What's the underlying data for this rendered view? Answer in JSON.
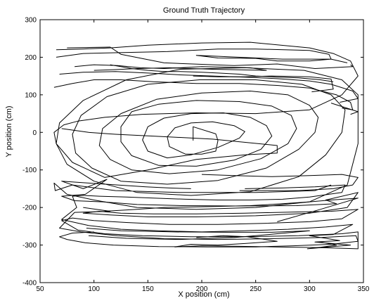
{
  "chart_data": {
    "type": "line",
    "title": "Ground Truth Trajectory",
    "xlabel": "X position (cm)",
    "ylabel": "Y position (cm)",
    "xlim": [
      50,
      350
    ],
    "ylim": [
      -400,
      300
    ],
    "xticks": [
      50,
      100,
      150,
      200,
      250,
      300,
      350
    ],
    "yticks": [
      -400,
      -300,
      -200,
      -100,
      0,
      100,
      200,
      300
    ],
    "grid": false,
    "line_color": "#000000",
    "series": [
      {
        "x": [
          192,
          192,
          213,
          215,
          213,
          200,
          185,
          170,
          168,
          175,
          190,
          210,
          230,
          240,
          235,
          215,
          190,
          168,
          150,
          145,
          150,
          165,
          190,
          220,
          245,
          260,
          265,
          255,
          230,
          195,
          160,
          135,
          125,
          125,
          135,
          160,
          195,
          235,
          265,
          283,
          288,
          280,
          255,
          215,
          170,
          135,
          115,
          105,
          108,
          125,
          158,
          200,
          245,
          280,
          300,
          308,
          305,
          290,
          260,
          215,
          168,
          125,
          98,
          83,
          80,
          88,
          112,
          150,
          198,
          250,
          293,
          320,
          333,
          330,
          315,
          290,
          245,
          190,
          140,
          100,
          75,
          65,
          68,
          90,
          130,
          180,
          240,
          295,
          330,
          345,
          345,
          335,
          300,
          250,
          195,
          140,
          100,
          75,
          63,
          64,
          80,
          120,
          180,
          250,
          305,
          320
        ],
        "y": [
          -22,
          15,
          -4,
          -22,
          -50,
          -58,
          -58,
          -38,
          -12,
          12,
          25,
          28,
          18,
          2,
          -15,
          -40,
          -60,
          -68,
          -50,
          -20,
          15,
          38,
          50,
          52,
          40,
          18,
          -10,
          -45,
          -74,
          -90,
          -88,
          -62,
          -25,
          15,
          55,
          75,
          85,
          82,
          70,
          45,
          10,
          -30,
          -70,
          -100,
          -110,
          -100,
          -72,
          -35,
          10,
          50,
          88,
          105,
          110,
          100,
          72,
          40,
          0,
          -45,
          -95,
          -128,
          -138,
          -130,
          -95,
          -55,
          -5,
          45,
          95,
          128,
          140,
          140,
          128,
          100,
          60,
          0,
          -60,
          -118,
          -158,
          -168,
          -160,
          -130,
          -85,
          -30,
          25,
          85,
          140,
          168,
          172,
          165,
          140,
          100,
          -30,
          -140,
          -185,
          -200,
          -205,
          -200,
          -180,
          -165,
          -135,
          -155,
          -140,
          -155,
          -160,
          -160,
          -155,
          -140
        ]
      },
      {
        "x": [
          190,
          170,
          148,
          122,
          95,
          70,
          90,
          112,
          92,
          70,
          82,
          108,
          140,
          182,
          232,
          288,
          325,
          315,
          345,
          335,
          300,
          250,
          195,
          150,
          115,
          90,
          105,
          125,
          155,
          195,
          240,
          285,
          320,
          345,
          330,
          300,
          260,
          215,
          170,
          130,
          100,
          80,
          70,
          85,
          110,
          145,
          190,
          240,
          290,
          330,
          345,
          345,
          310,
          268,
          230,
          200,
          175,
          190,
          215,
          240,
          270,
          242,
          220,
          195
        ],
        "y": [
          -150,
          -148,
          -145,
          -140,
          -135,
          -130,
          -150,
          -125,
          -165,
          -170,
          -182,
          -185,
          -192,
          -195,
          -196,
          -195,
          -190,
          -180,
          -160,
          -200,
          -215,
          -222,
          -225,
          -225,
          -220,
          -215,
          -210,
          -215,
          -217,
          -217,
          -215,
          -212,
          -210,
          -205,
          -230,
          -238,
          -242,
          -245,
          -245,
          -240,
          -235,
          -228,
          -235,
          -260,
          -270,
          -275,
          -278,
          -278,
          -275,
          -270,
          -265,
          -310,
          -307,
          -305,
          -303,
          -302,
          -305,
          -298,
          -300,
          -296,
          -290,
          -278,
          -275,
          -280
        ]
      },
      {
        "x": [
          240,
          275,
          305,
          333,
          330,
          300,
          275,
          245,
          215,
          185,
          155,
          130,
          105,
          90,
          80,
          84,
          70,
          95,
          125,
          160,
          200,
          240,
          280,
          315,
          340,
          322,
          300,
          328,
          305,
          338,
          318,
          298,
          310,
          325,
          310
        ],
        "y": [
          -150,
          -148,
          -145,
          -140,
          -160,
          -172,
          -178,
          -180,
          -180,
          -178,
          -175,
          -172,
          -170,
          -168,
          -170,
          -200,
          -232,
          -248,
          -258,
          -262,
          -265,
          -262,
          -258,
          -252,
          -245,
          -272,
          -275,
          -288,
          -292,
          -300,
          -305,
          -310,
          -306,
          -300,
          -292
        ]
      },
      {
        "x": [
          90,
          102,
          115,
          82,
          68,
          88,
          122,
          165,
          215,
          265,
          310,
          343,
          345,
          320,
          285,
          250,
          205,
          160,
          118,
          92,
          75,
          68,
          80,
          100
        ],
        "y": [
          -200,
          -205,
          -210,
          -213,
          -255,
          -265,
          -275,
          -283,
          -285,
          -283,
          -280,
          -275,
          -290,
          -298,
          -302,
          -305,
          -305,
          -304,
          -300,
          -294,
          -285,
          -278,
          -268,
          -265
        ]
      },
      {
        "x": [
          110,
          140,
          165,
          200,
          245,
          275,
          300,
          320,
          345,
          310,
          270
        ],
        "y": [
          -210,
          -205,
          -200,
          -198,
          -195,
          -190,
          -185,
          -180,
          -175,
          -205,
          -238
        ]
      },
      {
        "x": [
          93,
          125,
          175,
          225,
          265,
          300,
          262,
          230,
          180,
          130,
          95
        ],
        "y": [
          -255,
          -262,
          -265,
          -266,
          -266,
          -262,
          -272,
          -280,
          -285,
          -282,
          -275
        ]
      },
      {
        "x": [
          235,
          290,
          322,
          340,
          345,
          330,
          300,
          265,
          230,
          200
        ],
        "y": [
          -155,
          -155,
          -150,
          -140,
          -120,
          -112,
          -115,
          -118,
          -115,
          -112
        ]
      },
      {
        "x": [
          65,
          90,
          115,
          150,
          200,
          245,
          300,
          322,
          338,
          345,
          330,
          300,
          250,
          195,
          145,
          110,
          85,
          72,
          63,
          65,
          80,
          110,
          150,
          195,
          240,
          270,
          270,
          210,
          155,
          120,
          95,
          70
        ],
        "y": [
          220,
          222,
          225,
          232,
          238,
          240,
          225,
          210,
          190,
          150,
          100,
          60,
          50,
          52,
          48,
          40,
          30,
          20,
          0,
          -30,
          -80,
          -120,
          -100,
          -72,
          -60,
          -55,
          -35,
          -18,
          -10,
          -5,
          0,
          10
        ]
      },
      {
        "x": [
          65,
          90,
          120,
          168,
          215,
          250,
          300,
          318,
          320,
          300,
          270,
          250,
          215,
          195,
          275,
          320,
          335
        ],
        "y": [
          200,
          210,
          212,
          215,
          222,
          222,
          218,
          208,
          195,
          190,
          190,
          197,
          198,
          205,
          195,
          195,
          185
        ]
      },
      {
        "x": [
          75,
          115,
          125,
          165,
          230,
          270,
          305,
          340,
          338
        ],
        "y": [
          225,
          227,
          208,
          185,
          178,
          182,
          170,
          175,
          180
        ]
      },
      {
        "x": [
          82,
          100,
          122,
          143,
          165,
          200,
          245,
          260,
          210,
          170,
          140,
          118,
          100
        ],
        "y": [
          175,
          180,
          178,
          172,
          170,
          175,
          172,
          165,
          168,
          172,
          170,
          167,
          165
        ]
      },
      {
        "x": [
          115,
          125,
          135,
          150,
          165,
          180,
          200,
          215,
          235,
          250,
          270,
          290,
          310,
          322
        ],
        "y": [
          180,
          175,
          170,
          165,
          162,
          162,
          160,
          158,
          155,
          150,
          147,
          145,
          140,
          135
        ]
      },
      {
        "x": [
          192,
          215,
          240,
          265,
          300,
          320,
          322,
          302
        ],
        "y": [
          150,
          148,
          148,
          150,
          148,
          142,
          115,
          108
        ]
      },
      {
        "x": [
          68,
          90,
          120,
          150,
          180,
          210,
          240,
          270,
          300,
          320,
          340,
          345,
          328
        ],
        "y": [
          155,
          160,
          162,
          158,
          153,
          150,
          147,
          143,
          137,
          128,
          110,
          90,
          80
        ]
      },
      {
        "x": [
          63,
          80,
          100,
          125,
          155,
          195,
          235,
          270,
          300,
          325,
          338,
          340,
          330
        ],
        "y": [
          120,
          130,
          140,
          140,
          135,
          130,
          130,
          125,
          118,
          100,
          80,
          60,
          65
        ]
      },
      {
        "x": [
          320,
          345,
          338
        ],
        "y": [
          78,
          55,
          48
        ]
      }
    ]
  }
}
